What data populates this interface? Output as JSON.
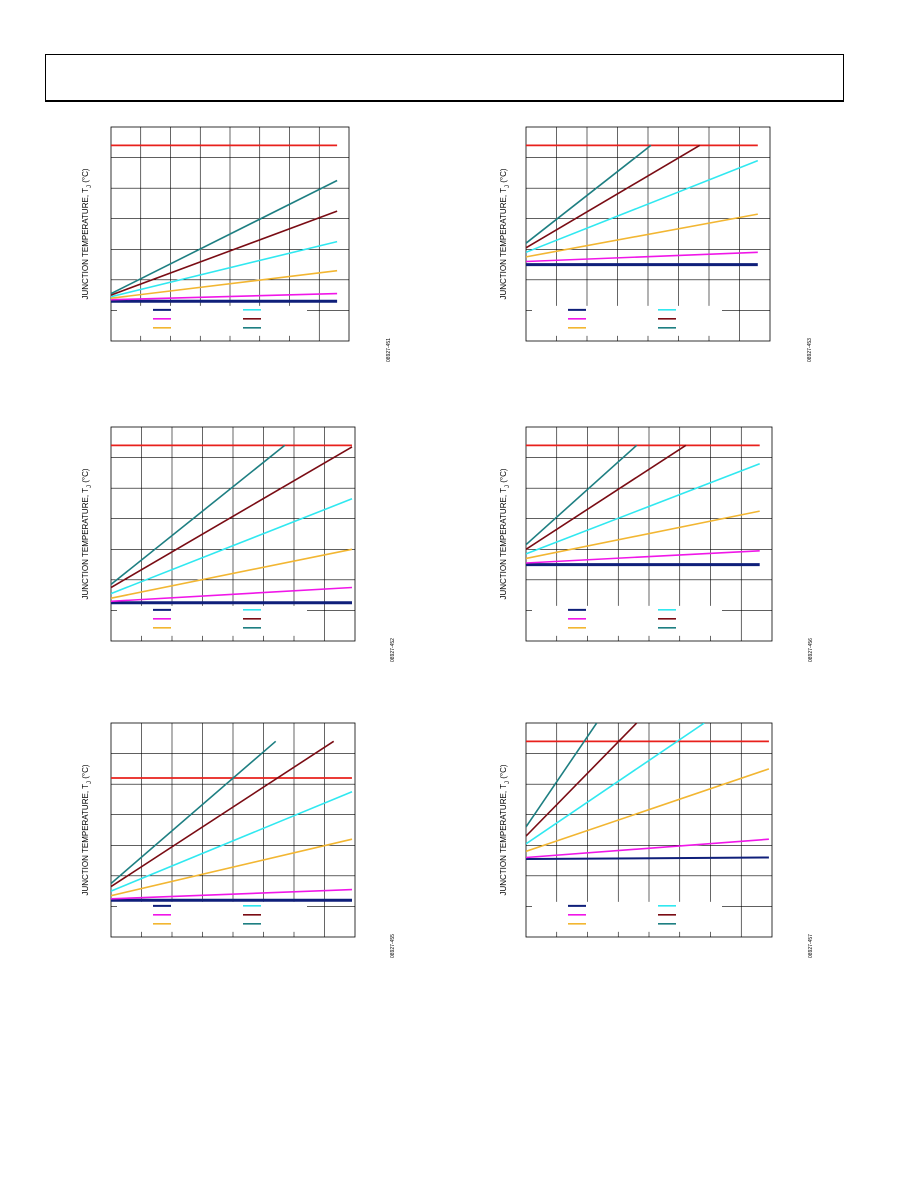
{
  "page": {
    "header_text": ""
  },
  "colors": {
    "limit": "#e8201c",
    "navy": "#0f1f7a",
    "magenta": "#f016e8",
    "orange": "#f2b632",
    "cyan": "#30e8f0",
    "maroon": "#7a0c14",
    "teal": "#1e7f82",
    "grid": "#000000"
  },
  "chart_data": [
    {
      "id": "fig-451",
      "type": "line",
      "ylabel": "JUNCTION TEMPERATURE, T",
      "ylabel_sub": "J",
      "ylabel_unit": " (°C)",
      "figure_id": "08927-451",
      "xlim": [
        0,
        8
      ],
      "ylim": [
        0,
        7
      ],
      "legend": "bottom-left",
      "limit_line": {
        "x": [
          0,
          7.6
        ],
        "y": 6.4
      },
      "series": [
        {
          "color": "navy",
          "width": 3,
          "x": [
            0,
            7.6
          ],
          "y": [
            1.3,
            1.3
          ]
        },
        {
          "color": "magenta",
          "width": 1.6,
          "x": [
            0,
            7.6
          ],
          "y": [
            1.35,
            1.55
          ]
        },
        {
          "color": "orange",
          "width": 1.6,
          "x": [
            0,
            7.6
          ],
          "y": [
            1.4,
            2.3
          ]
        },
        {
          "color": "cyan",
          "width": 1.6,
          "x": [
            0,
            7.6
          ],
          "y": [
            1.45,
            3.25
          ]
        },
        {
          "color": "maroon",
          "width": 1.6,
          "x": [
            0,
            7.6
          ],
          "y": [
            1.5,
            4.25
          ]
        },
        {
          "color": "teal",
          "width": 1.6,
          "x": [
            0,
            7.6
          ],
          "y": [
            1.55,
            5.25
          ]
        }
      ]
    },
    {
      "id": "fig-453",
      "type": "line",
      "ylabel": "JUNCTION TEMPERATURE, T",
      "ylabel_sub": "J",
      "ylabel_unit": " (°C)",
      "figure_id": "08927-453",
      "xlim": [
        0,
        8
      ],
      "ylim": [
        0,
        7
      ],
      "legend": "bottom-left",
      "limit_line": {
        "x": [
          0,
          7.6
        ],
        "y": 6.4
      },
      "series": [
        {
          "color": "navy",
          "width": 3,
          "x": [
            0,
            7.6
          ],
          "y": [
            2.5,
            2.5
          ]
        },
        {
          "color": "magenta",
          "width": 1.6,
          "x": [
            0,
            7.6
          ],
          "y": [
            2.6,
            2.9
          ]
        },
        {
          "color": "orange",
          "width": 1.6,
          "x": [
            0,
            7.6
          ],
          "y": [
            2.75,
            4.15
          ]
        },
        {
          "color": "cyan",
          "width": 1.6,
          "x": [
            0,
            7.6
          ],
          "y": [
            2.9,
            5.9
          ]
        },
        {
          "color": "maroon",
          "width": 1.6,
          "x": [
            0,
            5.7
          ],
          "y": [
            3.05,
            6.4
          ]
        },
        {
          "color": "teal",
          "width": 1.6,
          "x": [
            0,
            4.1
          ],
          "y": [
            3.2,
            6.4
          ]
        }
      ]
    },
    {
      "id": "fig-452",
      "type": "line",
      "ylabel": "JUNCTION TEMPERATURE, T",
      "ylabel_sub": "J",
      "ylabel_unit": " (°C)",
      "figure_id": "08927-452",
      "xlim": [
        0,
        8
      ],
      "ylim": [
        0,
        7
      ],
      "legend": "bottom-left",
      "limit_line": {
        "x": [
          0,
          7.9
        ],
        "y": 6.4
      },
      "series": [
        {
          "color": "navy",
          "width": 3,
          "x": [
            0,
            7.9
          ],
          "y": [
            1.25,
            1.25
          ]
        },
        {
          "color": "magenta",
          "width": 1.6,
          "x": [
            0,
            7.9
          ],
          "y": [
            1.3,
            1.75
          ]
        },
        {
          "color": "orange",
          "width": 1.6,
          "x": [
            0,
            7.9
          ],
          "y": [
            1.4,
            3.0
          ]
        },
        {
          "color": "cyan",
          "width": 1.6,
          "x": [
            0,
            7.9
          ],
          "y": [
            1.55,
            4.65
          ]
        },
        {
          "color": "maroon",
          "width": 1.6,
          "x": [
            0,
            7.9
          ],
          "y": [
            1.75,
            6.35
          ]
        },
        {
          "color": "teal",
          "width": 1.6,
          "x": [
            0,
            5.7
          ],
          "y": [
            1.85,
            6.4
          ]
        }
      ]
    },
    {
      "id": "fig-456",
      "type": "line",
      "ylabel": "JUNCTION TEMPERATURE, T",
      "ylabel_sub": "J",
      "ylabel_unit": " (°C)",
      "figure_id": "08927-456",
      "xlim": [
        0,
        8
      ],
      "ylim": [
        0,
        7
      ],
      "legend": "bottom-left",
      "limit_line": {
        "x": [
          0,
          7.6
        ],
        "y": 6.4
      },
      "series": [
        {
          "color": "navy",
          "width": 3,
          "x": [
            0,
            7.6
          ],
          "y": [
            2.5,
            2.5
          ]
        },
        {
          "color": "magenta",
          "width": 1.6,
          "x": [
            0,
            7.6
          ],
          "y": [
            2.55,
            2.95
          ]
        },
        {
          "color": "orange",
          "width": 1.6,
          "x": [
            0,
            7.6
          ],
          "y": [
            2.7,
            4.25
          ]
        },
        {
          "color": "cyan",
          "width": 1.6,
          "x": [
            0,
            7.6
          ],
          "y": [
            2.85,
            5.8
          ]
        },
        {
          "color": "maroon",
          "width": 1.6,
          "x": [
            0,
            5.2
          ],
          "y": [
            3.0,
            6.4
          ]
        },
        {
          "color": "teal",
          "width": 1.6,
          "x": [
            0,
            3.6
          ],
          "y": [
            3.15,
            6.4
          ]
        }
      ]
    },
    {
      "id": "fig-455",
      "type": "line",
      "ylabel": "JUNCTION TEMPERATURE, T",
      "ylabel_sub": "J",
      "ylabel_unit": " (°C)",
      "figure_id": "08927-455",
      "xlim": [
        0,
        8
      ],
      "ylim": [
        0,
        7
      ],
      "legend": "bottom-left",
      "limit_line": {
        "x": [
          0,
          7.9
        ],
        "y": 5.2
      },
      "series": [
        {
          "color": "navy",
          "width": 3,
          "x": [
            0,
            7.9
          ],
          "y": [
            1.2,
            1.2
          ]
        },
        {
          "color": "magenta",
          "width": 1.6,
          "x": [
            0,
            7.9
          ],
          "y": [
            1.25,
            1.55
          ]
        },
        {
          "color": "orange",
          "width": 1.6,
          "x": [
            0,
            7.9
          ],
          "y": [
            1.35,
            3.2
          ]
        },
        {
          "color": "cyan",
          "width": 1.6,
          "x": [
            0,
            7.9
          ],
          "y": [
            1.5,
            4.75
          ]
        },
        {
          "color": "maroon",
          "width": 1.6,
          "x": [
            0,
            7.3
          ],
          "y": [
            1.65,
            6.4
          ]
        },
        {
          "color": "teal",
          "width": 1.6,
          "x": [
            0,
            5.4
          ],
          "y": [
            1.75,
            6.4
          ]
        }
      ]
    },
    {
      "id": "fig-457",
      "type": "line",
      "ylabel": "JUNCTION TEMPERATURE, T",
      "ylabel_sub": "J",
      "ylabel_unit": " (°C)",
      "figure_id": "08927-457",
      "xlim": [
        0,
        8
      ],
      "ylim": [
        0,
        7
      ],
      "legend": "bottom-left",
      "limit_line": {
        "x": [
          0,
          7.9
        ],
        "y": 6.4
      },
      "series": [
        {
          "color": "navy",
          "width": 2,
          "x": [
            0,
            7.9
          ],
          "y": [
            2.55,
            2.6
          ]
        },
        {
          "color": "magenta",
          "width": 1.6,
          "x": [
            0,
            7.9
          ],
          "y": [
            2.6,
            3.2
          ]
        },
        {
          "color": "orange",
          "width": 1.6,
          "x": [
            0,
            7.9
          ],
          "y": [
            2.8,
            5.5
          ]
        },
        {
          "color": "cyan",
          "width": 1.6,
          "x": [
            0,
            5.8
          ],
          "y": [
            3.05,
            7.0
          ]
        },
        {
          "color": "maroon",
          "width": 1.6,
          "x": [
            0,
            3.6
          ],
          "y": [
            3.3,
            7.0
          ]
        },
        {
          "color": "teal",
          "width": 1.6,
          "x": [
            0,
            2.3
          ],
          "y": [
            3.6,
            7.0
          ]
        }
      ]
    }
  ]
}
